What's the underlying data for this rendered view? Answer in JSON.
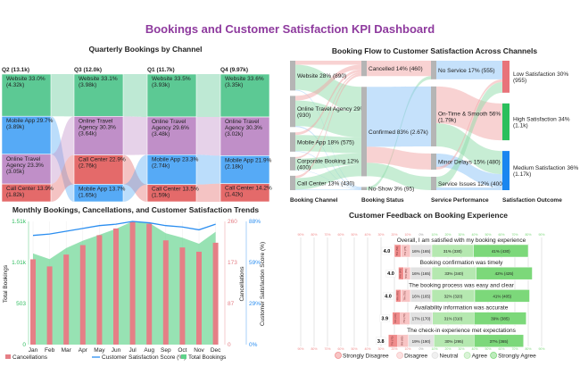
{
  "title": "Bookings and Customer Satisfaction KPI Dashboard",
  "chart_data": [
    {
      "type": "bar",
      "subtype": "stacked-100-ribbon",
      "title": "Quarterly Bookings by Channel",
      "colors": {
        "Website": "#5cc994",
        "Online Travel Agency": "#c08fc8",
        "Mobile App": "#56aaf6",
        "Call Center": "#e46a6a"
      },
      "columns": [
        {
          "label": "Q2 (13.1k)",
          "segments": [
            {
              "channel": "Website",
              "pct": "33.0%",
              "value": "(4.32k)",
              "share": 33.0
            },
            {
              "channel": "Mobile App",
              "pct": "29.7%",
              "value": "(3.89k)",
              "share": 29.7
            },
            {
              "channel": "Online Travel Agency",
              "pct": "23.3%",
              "value": "(3.05k)",
              "share": 23.3
            },
            {
              "channel": "Call Center",
              "pct": "13.9%",
              "value": "(1.82k)",
              "share": 13.9
            }
          ]
        },
        {
          "label": "Q3 (12.0k)",
          "segments": [
            {
              "channel": "Website",
              "pct": "33.1%",
              "value": "(3.98k)",
              "share": 33.1
            },
            {
              "channel": "Online Travel Agency",
              "pct": "30.3%",
              "value": "(3.64k)",
              "share": 30.3
            },
            {
              "channel": "Call Center",
              "pct": "22.9%",
              "value": "(2.76k)",
              "share": 22.9
            },
            {
              "channel": "Mobile App",
              "pct": "13.7%",
              "value": "(1.65k)",
              "share": 13.7
            }
          ]
        },
        {
          "label": "Q1 (11.7k)",
          "segments": [
            {
              "channel": "Website",
              "pct": "33.5%",
              "value": "(3.93k)",
              "share": 33.5
            },
            {
              "channel": "Online Travel Agency",
              "pct": "29.6%",
              "value": "(3.48k)",
              "share": 29.6
            },
            {
              "channel": "Mobile App",
              "pct": "23.3%",
              "value": "(2.74k)",
              "share": 23.3
            },
            {
              "channel": "Call Center",
              "pct": "13.5%",
              "value": "(1.59k)",
              "share": 13.5
            }
          ]
        },
        {
          "label": "Q4 (9.97k)",
          "segments": [
            {
              "channel": "Website",
              "pct": "33.6%",
              "value": "(3.35k)",
              "share": 33.6
            },
            {
              "channel": "Online Travel Agency",
              "pct": "30.3%",
              "value": "(3.02k)",
              "share": 30.3
            },
            {
              "channel": "Mobile App",
              "pct": "21.9%",
              "value": "(2.18k)",
              "share": 21.9
            },
            {
              "channel": "Call Center",
              "pct": "14.2%",
              "value": "(1.42k)",
              "share": 14.2
            }
          ]
        }
      ]
    },
    {
      "type": "sankey",
      "title": "Booking Flow to Customer Satisfaction Across Channels",
      "stage_labels": [
        "Booking Channel",
        "Booking Status",
        "Service Performance",
        "Satisfaction Outcome"
      ],
      "link_colors": [
        "#f2a5a5",
        "#8fdcaa",
        "#8cc3f7"
      ],
      "nodes": [
        {
          "id": "web",
          "stage": 0,
          "label": "Website 28% (890)",
          "value": 890
        },
        {
          "id": "ota",
          "stage": 0,
          "label": "Online Travel Agency 29% (930)",
          "value": 930
        },
        {
          "id": "mob",
          "stage": 0,
          "label": "Mobile App 18% (575)",
          "value": 575
        },
        {
          "id": "corp",
          "stage": 0,
          "label": "Corporate Booking 12% (400)",
          "value": 400
        },
        {
          "id": "call",
          "stage": 0,
          "label": "Call Center 13% (430)",
          "value": 430
        },
        {
          "id": "canc",
          "stage": 1,
          "label": "Cancelled 14% (460)",
          "value": 460
        },
        {
          "id": "conf",
          "stage": 1,
          "label": "Confirmed 83% (2.67k)",
          "value": 2670
        },
        {
          "id": "ns",
          "stage": 1,
          "label": "No-Show 3% (95)",
          "value": 95
        },
        {
          "id": "nosv",
          "stage": 2,
          "label": "No Service 17% (555)",
          "value": 555
        },
        {
          "id": "ots",
          "stage": 2,
          "label": "On-Time & Smooth 56% (1.79k)",
          "value": 1790
        },
        {
          "id": "md",
          "stage": 2,
          "label": "Minor Delays 15% (480)",
          "value": 480
        },
        {
          "id": "si",
          "stage": 2,
          "label": "Service Issues 12% (400)",
          "value": 400
        },
        {
          "id": "low",
          "stage": 3,
          "label": "Low Satisfaction 30% (955)",
          "value": 955,
          "color": "#e8737a"
        },
        {
          "id": "high",
          "stage": 3,
          "label": "High Satisfaction 34% (1.1k)",
          "value": 1100,
          "color": "#2bbf5c"
        },
        {
          "id": "med",
          "stage": 3,
          "label": "Medium Satisfaction 36% (1.17k)",
          "value": 1170,
          "color": "#1a86f0"
        }
      ],
      "links": [
        [
          "web",
          "canc",
          120
        ],
        [
          "web",
          "conf",
          745
        ],
        [
          "web",
          "ns",
          25
        ],
        [
          "ota",
          "canc",
          140
        ],
        [
          "ota",
          "conf",
          760
        ],
        [
          "ota",
          "ns",
          30
        ],
        [
          "mob",
          "canc",
          80
        ],
        [
          "mob",
          "conf",
          480
        ],
        [
          "mob",
          "ns",
          15
        ],
        [
          "corp",
          "canc",
          50
        ],
        [
          "corp",
          "conf",
          340
        ],
        [
          "corp",
          "ns",
          10
        ],
        [
          "call",
          "canc",
          70
        ],
        [
          "call",
          "conf",
          345
        ],
        [
          "call",
          "ns",
          15
        ],
        [
          "canc",
          "nosv",
          460
        ],
        [
          "ns",
          "nosv",
          95
        ],
        [
          "conf",
          "ots",
          1790
        ],
        [
          "conf",
          "md",
          480
        ],
        [
          "conf",
          "si",
          400
        ],
        [
          "nosv",
          "low",
          555
        ],
        [
          "ots",
          "high",
          1100
        ],
        [
          "ots",
          "med",
          690
        ],
        [
          "md",
          "med",
          400
        ],
        [
          "md",
          "low",
          80
        ],
        [
          "si",
          "low",
          320
        ],
        [
          "si",
          "med",
          80
        ]
      ]
    },
    {
      "type": "bar",
      "subtype": "combo-area-bar-line",
      "title": "Monthly Bookings, Cancellations, and Customer Satisfaction Trends",
      "categories": [
        "Jan",
        "Feb",
        "Mar",
        "Apr",
        "May",
        "Jun",
        "Jul",
        "Aug",
        "Sep",
        "Oct",
        "Nov",
        "Dec"
      ],
      "series": [
        {
          "name": "Total Bookings",
          "type": "area",
          "axis": "left",
          "color": "#5fd38a",
          "values": [
            1117,
            1048,
            1183,
            1274,
            1346,
            1419,
            1510,
            1492,
            1365,
            1310,
            1237,
            1383
          ]
        },
        {
          "name": "Cancellations",
          "type": "bar",
          "axis": "right1",
          "color": "#e57f86",
          "values": [
            180,
            165,
            190,
            210,
            231,
            245,
            259,
            255,
            220,
            205,
            196,
            215
          ]
        },
        {
          "name": "Customer Satisfaction Score (%)",
          "type": "line",
          "axis": "right2",
          "color": "#2b8ef0",
          "values": [
            78,
            79,
            81,
            83,
            85,
            86,
            88,
            87,
            85,
            84,
            82,
            86
          ]
        }
      ],
      "axes": {
        "left": {
          "label": "Total Bookings",
          "range": [
            0,
            1510
          ],
          "ticks": [
            "0",
            "503",
            "1.01k",
            "1.51k"
          ],
          "color": "#2ebd5e"
        },
        "right1": {
          "label": "Cancellations",
          "range": [
            0,
            260
          ],
          "ticks": [
            "0",
            "87",
            "173",
            "260"
          ],
          "color": "#e57f86"
        },
        "right2": {
          "label": "Customer Satisfaction Score (%)",
          "range": [
            0,
            88
          ],
          "ticks": [
            "0%",
            "29%",
            "59%",
            "88%"
          ],
          "color": "#2b8ef0"
        }
      },
      "legend": [
        "Cancellations",
        "Customer Satisfaction Score (%)",
        "Total Bookings"
      ],
      "legend_position": "bottom"
    },
    {
      "type": "bar",
      "subtype": "diverging-likert",
      "title": "Customer Feedback on Booking Experience",
      "ticks": [
        "90%",
        "80%",
        "70%",
        "60%",
        "50%",
        "40%",
        "30%",
        "20%",
        "10%",
        "0%",
        "10%",
        "20%",
        "30%",
        "40%",
        "50%",
        "60%",
        "70%",
        "80%",
        "90%"
      ],
      "levels": [
        "Strongly Disagree",
        "Disagree",
        "Neutral",
        "Agree",
        "Strongly Agree"
      ],
      "level_colors": [
        "#f08c8c",
        "#f8c4c4",
        "#e2e2e2",
        "#b5e8b0",
        "#7cd87a"
      ],
      "items": [
        {
          "question": "Overall, I am satisfied with my booking experience",
          "mean": "4.0",
          "pcts": [
            5,
            7,
            16,
            31,
            41
          ],
          "labels": [
            "5% (50)",
            "7% (75)",
            "16% (165)",
            "31% (330)",
            "41% (430)"
          ]
        },
        {
          "question": "Booking confirmation was timely",
          "mean": "4.0",
          "pcts": [
            4,
            5,
            16,
            33,
            42
          ],
          "labels": [
            "4% (40)",
            "5% (55)",
            "16% (165)",
            "33% (340)",
            "42% (425)"
          ]
        },
        {
          "question": "The booking process was easy and clear",
          "mean": "4.0",
          "pcts": [
            4,
            7,
            16,
            32,
            41
          ],
          "labels": [
            "4% (40)",
            "7% (70)",
            "16% (165)",
            "32% (320)",
            "41% (405)"
          ]
        },
        {
          "question": "Availability information was accurate",
          "mean": "3.9",
          "pcts": [
            6,
            7,
            17,
            31,
            39
          ],
          "labels": [
            "6% (60)",
            "7% (70)",
            "17% (170)",
            "31% (310)",
            "39% (385)"
          ]
        },
        {
          "question": "The check-in experience met expectations",
          "mean": "3.8",
          "pcts": [
            7,
            8,
            19,
            30,
            37
          ],
          "labels": [
            "7% (70)",
            "8% (80)",
            "19% (190)",
            "30% (295)",
            "37% (365)"
          ]
        }
      ],
      "legend_position": "bottom"
    }
  ]
}
